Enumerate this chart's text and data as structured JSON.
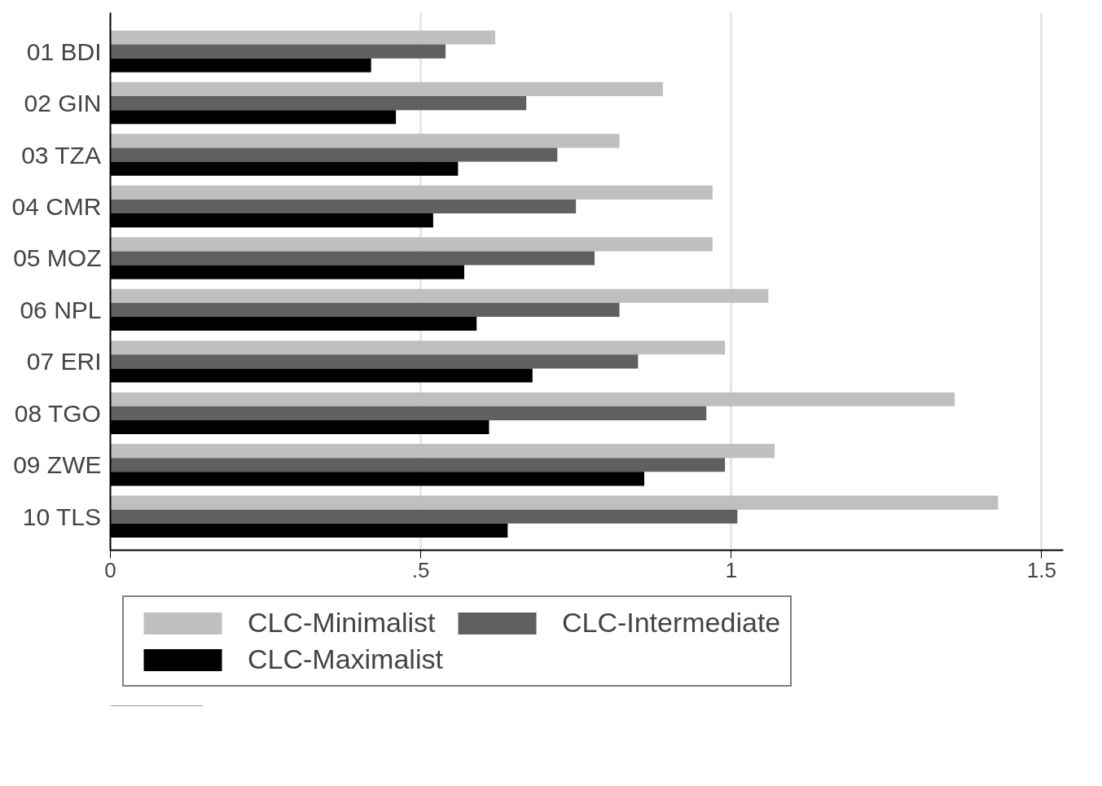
{
  "chart_data": {
    "type": "bar",
    "orientation": "horizontal",
    "categories": [
      "01 BDI",
      "02 GIN",
      "03 TZA",
      "04 CMR",
      "05 MOZ",
      "06 NPL",
      "07 ERI",
      "08 TGO",
      "09 ZWE",
      "10 TLS"
    ],
    "series": [
      {
        "name": "CLC-Minimalist",
        "color": "#bfbfbf",
        "values": [
          0.62,
          0.89,
          0.82,
          0.97,
          0.97,
          1.06,
          0.99,
          1.36,
          1.07,
          1.43
        ]
      },
      {
        "name": "CLC-Intermediate",
        "color": "#606060",
        "values": [
          0.54,
          0.67,
          0.72,
          0.75,
          0.78,
          0.82,
          0.85,
          0.96,
          0.99,
          1.01
        ]
      },
      {
        "name": "CLC-Maximalist",
        "color": "#000000",
        "values": [
          0.42,
          0.46,
          0.56,
          0.52,
          0.57,
          0.59,
          0.68,
          0.61,
          0.86,
          0.64
        ]
      }
    ],
    "xlim": [
      0,
      1.535
    ],
    "xticks": [
      0,
      {
        "value": 0.5,
        "label": ".5"
      },
      1,
      1.5
    ],
    "grid": "x",
    "legend": "bottom"
  }
}
